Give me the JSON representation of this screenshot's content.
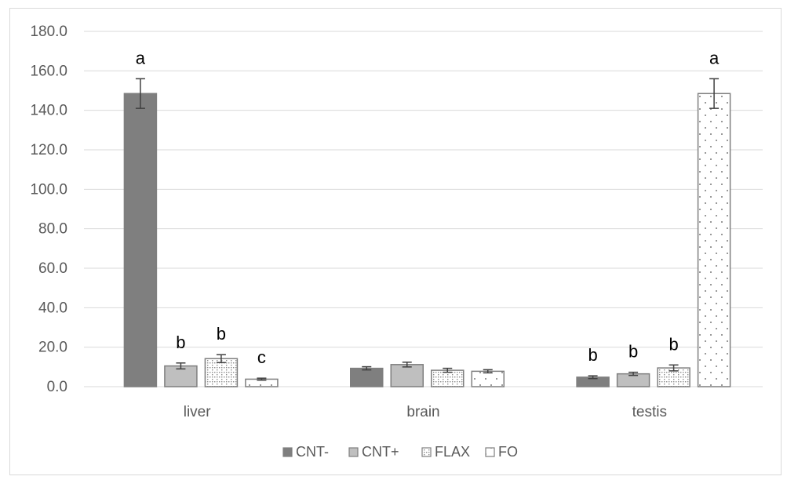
{
  "chart_data": {
    "type": "bar",
    "categories": [
      "liver",
      "brain",
      "testis"
    ],
    "ylim": [
      0,
      180
    ],
    "yticks": [
      "0.0",
      "20.0",
      "40.0",
      "60.0",
      "80.0",
      "100.0",
      "120.0",
      "140.0",
      "160.0",
      "180.0"
    ],
    "grid": true,
    "legend_position": "bottom",
    "series": [
      {
        "name": "CNT-",
        "values": [
          148.5,
          9.3,
          4.8
        ],
        "errors": [
          7.5,
          0.8,
          0.7
        ],
        "labels": [
          "a",
          "",
          "b"
        ],
        "color": "#7f7f7f",
        "pattern": "solid"
      },
      {
        "name": "CNT+",
        "values": [
          10.5,
          11.2,
          6.5
        ],
        "errors": [
          1.5,
          1.2,
          0.8
        ],
        "labels": [
          "b",
          "",
          "b"
        ],
        "color": "#bfbfbf",
        "pattern": "solid"
      },
      {
        "name": "FLAX",
        "values": [
          14.2,
          8.3,
          9.5
        ],
        "errors": [
          2.0,
          1.0,
          1.5
        ],
        "labels": [
          "b",
          "",
          "b"
        ],
        "color": "#ffffff",
        "pattern": "dotted-grid"
      },
      {
        "name": "FO",
        "values": [
          3.8,
          7.8,
          148.5
        ],
        "errors": [
          0.5,
          0.8,
          7.5
        ],
        "labels": [
          "c",
          "",
          "a"
        ],
        "color": "#ffffff",
        "pattern": "dots"
      }
    ]
  }
}
